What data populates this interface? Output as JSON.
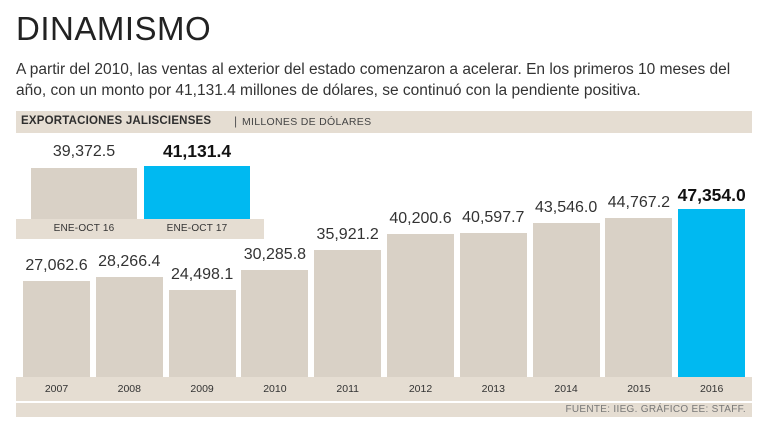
{
  "header": {
    "title": "DINAMISMO",
    "intro": "A partir del 2010, las ventas al exterior del estado comenzaron a acelerar. En los primeros 10 meses del año, con un monto por 41,131.4 millones de dólares, se continuó con la pendiente positiva."
  },
  "subheader": {
    "main": "EXPORTACIONES JALISCIENSES",
    "separator": "|",
    "unit": "MILLONES DE DÓLARES"
  },
  "colors": {
    "bar": "#d9d1c6",
    "highlight": "#00b9f1",
    "band": "#e5ddd2"
  },
  "chart_data": [
    {
      "type": "bar",
      "title": "EXPORTACIONES JALISCIENSES",
      "ylabel": "MILLONES DE DÓLARES",
      "categories": [
        "2007",
        "2008",
        "2009",
        "2010",
        "2011",
        "2012",
        "2013",
        "2014",
        "2015",
        "2016"
      ],
      "values": [
        27062.6,
        28266.4,
        24498.1,
        30285.8,
        35921.2,
        40200.6,
        40597.7,
        43546.0,
        44767.2,
        47354.0
      ],
      "value_labels": [
        "27,062.6",
        "28,266.4",
        "24,498.1",
        "30,285.8",
        "35,921.2",
        "40,200.6",
        "40,597.7",
        "43,546.0",
        "44,767.2",
        "47,354.0"
      ],
      "highlight_index": 9,
      "ylim": [
        0,
        47354.0
      ]
    },
    {
      "type": "bar",
      "categories": [
        "ENE-OCT 16",
        "ENE-OCT 17"
      ],
      "values": [
        39372.5,
        41131.4
      ],
      "value_labels": [
        "39,372.5",
        "41,131.4"
      ],
      "highlight_index": 1,
      "ylim": [
        0,
        41131.4
      ]
    }
  ],
  "footer": {
    "source": "FUENTE: IIEG. GRÁFICO EE: STAFF."
  }
}
